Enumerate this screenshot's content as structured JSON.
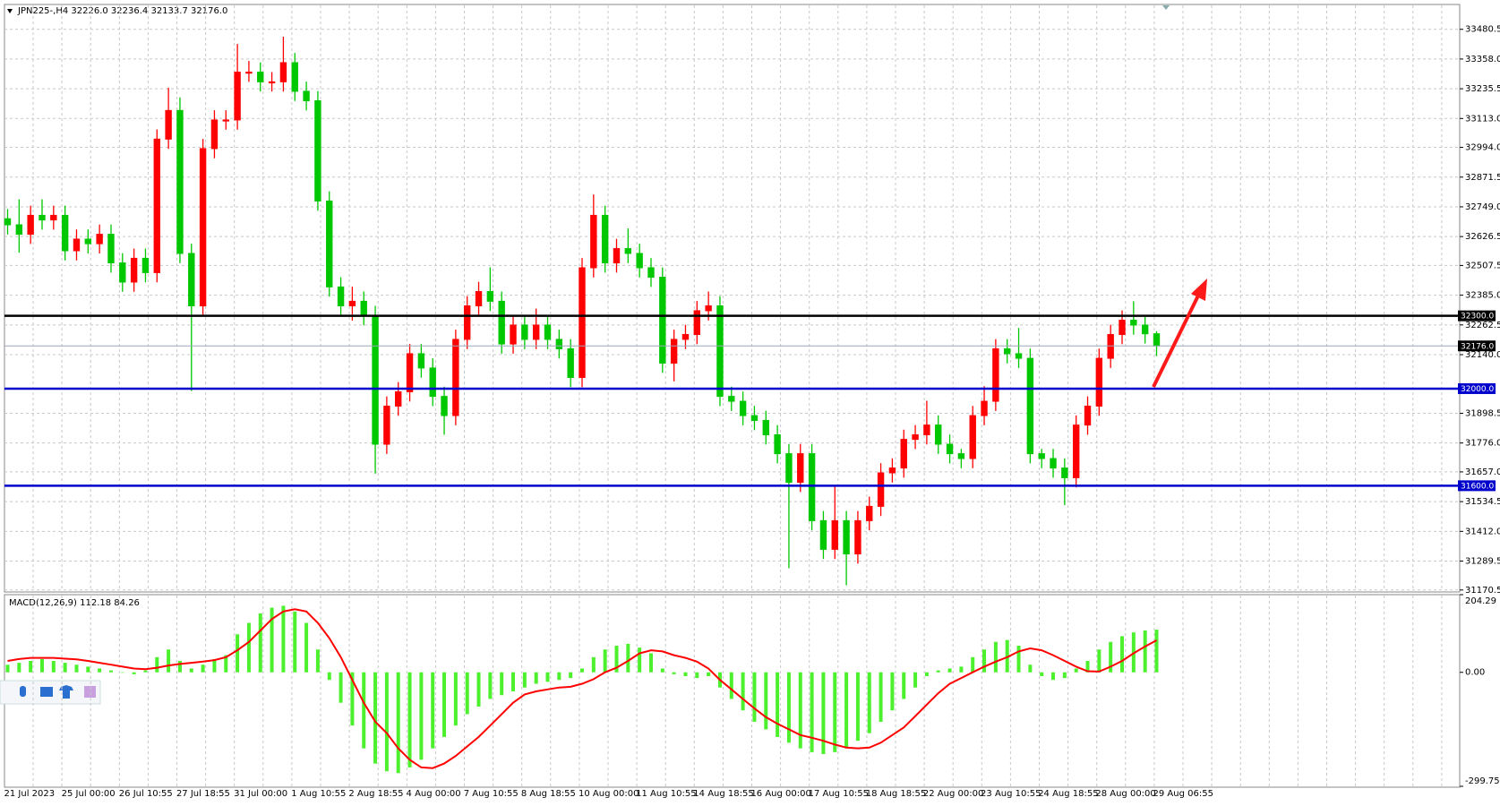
{
  "chart_data": [
    {
      "type": "candlestick",
      "title": "JPN225-,H4  32226.0 32236.4 32133.7 32176.0",
      "categories": [
        "21 Jul 2023",
        null,
        null,
        null,
        null,
        "25 Jul 00:00",
        null,
        null,
        null,
        null,
        "26 Jul 10:55",
        null,
        null,
        null,
        null,
        "27 Jul 18:55",
        null,
        null,
        null,
        null,
        "31 Jul 00:00",
        null,
        null,
        null,
        null,
        "1 Aug 10:55",
        null,
        null,
        null,
        null,
        "2 Aug 18:55",
        null,
        null,
        null,
        null,
        "4 Aug 00:00",
        null,
        null,
        null,
        null,
        "7 Aug 10:55",
        null,
        null,
        null,
        null,
        "8 Aug 18:55",
        null,
        null,
        null,
        null,
        "10 Aug 00:00",
        null,
        null,
        null,
        null,
        "11 Aug 10:55",
        null,
        null,
        null,
        null,
        "14 Aug 18:55",
        null,
        null,
        null,
        null,
        "16 Aug 00:00",
        null,
        null,
        null,
        null,
        "17 Aug 10:55",
        null,
        null,
        null,
        null,
        "18 Aug 18:55",
        null,
        null,
        null,
        null,
        "22 Aug 00:00",
        null,
        null,
        null,
        null,
        "23 Aug 10:55",
        null,
        null,
        null,
        null,
        "24 Aug 18:55",
        null,
        null,
        null,
        null,
        "28 Aug 00:00",
        null,
        null,
        null,
        null,
        "29 Aug 06:55"
      ],
      "open": [
        32700,
        32675,
        32636,
        32714,
        32695,
        32714,
        32568,
        32616,
        32597,
        32636,
        32518,
        32439,
        32537,
        32478,
        33028,
        33146,
        32557,
        32341,
        32989,
        33107,
        33107,
        33304,
        33304,
        33264,
        33264,
        33343,
        33225,
        33186,
        32773,
        32419,
        32341,
        32360,
        32301,
        31771,
        31928,
        31987,
        32144,
        32085,
        31968,
        31889,
        32203,
        32341,
        32400,
        32360,
        32184,
        32262,
        32203,
        32262,
        32203,
        32164,
        32046,
        32498,
        32714,
        32518,
        32577,
        32557,
        32498,
        32459,
        32105,
        32203,
        32223,
        32321,
        32341,
        31968,
        31948,
        31889,
        31869,
        31810,
        31732,
        31614,
        31732,
        31456,
        31338,
        31456,
        31319,
        31456,
        31515,
        31653,
        31673,
        31791,
        31810,
        31850,
        31771,
        31732,
        31712,
        31889,
        31948,
        32164,
        32144,
        32125,
        31732,
        31712,
        31673,
        31633,
        31850,
        31928,
        32125,
        32223,
        32282,
        32262,
        32226
      ],
      "high": [
        32740,
        32780,
        32754,
        32780,
        32754,
        32754,
        32656,
        32656,
        32676,
        32676,
        32558,
        32577,
        32577,
        33068,
        33240,
        33200,
        32597,
        33029,
        33147,
        33147,
        33420,
        33350,
        33344,
        33304,
        33450,
        33383,
        33265,
        33226,
        32813,
        32459,
        32420,
        32400,
        32341,
        31968,
        32027,
        32184,
        32184,
        32125,
        32008,
        32243,
        32381,
        32440,
        32500,
        32400,
        32302,
        32302,
        32330,
        32302,
        32243,
        32204,
        32538,
        32800,
        32754,
        32617,
        32660,
        32597,
        32538,
        32499,
        32243,
        32263,
        32361,
        32400,
        32381,
        32008,
        31988,
        31929,
        31909,
        31850,
        31772,
        31772,
        31772,
        31496,
        31600,
        31496,
        31496,
        31555,
        31693,
        31713,
        31831,
        31850,
        31950,
        31890,
        31811,
        31752,
        31929,
        32010,
        32204,
        32204,
        32250,
        32165,
        31752,
        31752,
        31713,
        31890,
        31968,
        32165,
        32263,
        32322,
        32360,
        32302,
        32236.4
      ],
      "low": [
        32635,
        32560,
        32596,
        32655,
        32655,
        32528,
        32528,
        32557,
        32557,
        32478,
        32399,
        32399,
        32438,
        32438,
        32988,
        32517,
        31990,
        32301,
        32949,
        33067,
        33067,
        33264,
        33224,
        33224,
        33224,
        33185,
        33146,
        32733,
        32379,
        32301,
        32280,
        32261,
        31650,
        31731,
        31888,
        31947,
        32045,
        31928,
        31810,
        31849,
        32163,
        32301,
        32320,
        32144,
        32144,
        32163,
        32163,
        32163,
        32124,
        32006,
        32006,
        32458,
        32478,
        32478,
        32517,
        32458,
        32419,
        32065,
        32030,
        32163,
        32183,
        32281,
        31928,
        31908,
        31849,
        31829,
        31770,
        31692,
        31260,
        31574,
        31416,
        31298,
        31298,
        31190,
        31279,
        31416,
        31475,
        31613,
        31633,
        31751,
        31770,
        31731,
        31692,
        31672,
        31672,
        31849,
        31908,
        32104,
        32085,
        31692,
        31672,
        31633,
        31520,
        31593,
        31810,
        31888,
        32085,
        32183,
        32222,
        32186,
        32133.7
      ],
      "close": [
        32675,
        32636,
        32714,
        32695,
        32714,
        32568,
        32616,
        32597,
        32636,
        32518,
        32439,
        32537,
        32478,
        33028,
        33146,
        32557,
        32341,
        32989,
        33107,
        33107,
        33304,
        33304,
        33264,
        33264,
        33343,
        33225,
        33186,
        32773,
        32419,
        32341,
        32360,
        32301,
        31771,
        31928,
        31987,
        32144,
        32085,
        31968,
        31889,
        32203,
        32341,
        32400,
        32360,
        32184,
        32262,
        32203,
        32262,
        32203,
        32164,
        32046,
        32498,
        32714,
        32518,
        32577,
        32557,
        32498,
        32459,
        32105,
        32203,
        32223,
        32321,
        32341,
        31968,
        31948,
        31889,
        31869,
        31810,
        31732,
        31614,
        31732,
        31456,
        31338,
        31456,
        31319,
        31456,
        31515,
        31653,
        31673,
        31791,
        31810,
        31850,
        31771,
        31732,
        31712,
        31889,
        31948,
        32164,
        32144,
        32125,
        31732,
        31712,
        31673,
        31633,
        31850,
        31928,
        32125,
        32223,
        32282,
        32262,
        32226,
        32176
      ],
      "up_color": "#ff0000",
      "down_color": "#00c800",
      "ylim": [
        31166,
        33579
      ],
      "yticks": [
        33480.5,
        {
          "value": 33358,
          "label": "33358.0"
        },
        33235.5,
        {
          "value": 33113,
          "label": "33113.0"
        },
        {
          "value": 32994,
          "label": "32994.0"
        },
        32871.5,
        {
          "value": 32749,
          "label": "32749.0"
        },
        32626.5,
        32507.5,
        {
          "value": 32385,
          "label": "32385.0"
        },
        32262.5,
        {
          "value": 32140,
          "label": "32140.0"
        },
        31898.5,
        {
          "value": 31776,
          "label": "31776.0"
        },
        {
          "value": 31657,
          "label": "31657.0"
        },
        31534.5,
        {
          "value": 31412,
          "label": "31412.0"
        },
        31289.5,
        31170.5
      ],
      "grid": true,
      "hlines": [
        {
          "value": 32300,
          "label": "32300.0",
          "color": "#000000"
        },
        {
          "value": 32000,
          "label": "32000.0",
          "color": "#0000cc"
        },
        {
          "value": 31600,
          "label": "31600.0",
          "color": "#0000cc"
        },
        {
          "value": 32176,
          "label": "32176.0",
          "color": "#9aa8b8"
        }
      ]
    },
    {
      "type": "macd",
      "title": "MACD(12,26,9) 112.18 84.26",
      "series": [
        {
          "style": "bar",
          "color": "#4cf02c",
          "values": [
            20,
            25,
            30,
            35,
            30,
            25,
            20,
            15,
            10,
            5,
            0,
            -5,
            5,
            40,
            60,
            30,
            10,
            20,
            35,
            45,
            100,
            130,
            155,
            170,
            175,
            160,
            130,
            60,
            -20,
            -80,
            -140,
            -200,
            -240,
            -260,
            -265,
            -250,
            -230,
            -200,
            -170,
            -140,
            -110,
            -90,
            -70,
            -60,
            -50,
            -40,
            -30,
            -25,
            -20,
            -15,
            10,
            40,
            60,
            70,
            75,
            65,
            50,
            10,
            -5,
            -10,
            -15,
            -10,
            -40,
            -70,
            -100,
            -130,
            -150,
            -170,
            -185,
            -200,
            -210,
            -215,
            -210,
            -200,
            -180,
            -160,
            -130,
            -100,
            -70,
            -40,
            -10,
            5,
            10,
            15,
            40,
            60,
            80,
            85,
            70,
            20,
            -10,
            -20,
            -15,
            10,
            30,
            60,
            80,
            95,
            105,
            110,
            112.18
          ]
        },
        {
          "style": "line",
          "color": "#ff0000",
          "values": [
            30,
            35,
            38,
            38,
            38,
            36,
            34,
            30,
            25,
            20,
            15,
            10,
            8,
            12,
            18,
            22,
            25,
            28,
            32,
            40,
            58,
            80,
            110,
            140,
            160,
            166,
            160,
            130,
            90,
            40,
            -20,
            -80,
            -130,
            -160,
            -200,
            -230,
            -250,
            -252,
            -240,
            -220,
            -195,
            -170,
            -140,
            -110,
            -80,
            -58,
            -50,
            -45,
            -40,
            -38,
            -30,
            -18,
            0,
            12,
            30,
            50,
            58,
            55,
            45,
            38,
            28,
            10,
            -20,
            -45,
            -70,
            -95,
            -118,
            -135,
            -150,
            -165,
            -172,
            -180,
            -190,
            -198,
            -200,
            -198,
            -185,
            -165,
            -145,
            -115,
            -85,
            -55,
            -30,
            -15,
            0,
            15,
            28,
            40,
            55,
            63,
            58,
            45,
            30,
            15,
            3,
            2,
            15,
            30,
            50,
            68,
            84.26
          ]
        }
      ],
      "ylim": [
        -299.75,
        204.29
      ],
      "yticks": [
        204.29,
        {
          "value": 0,
          "label": "0.00"
        },
        -299.75
      ]
    }
  ]
}
